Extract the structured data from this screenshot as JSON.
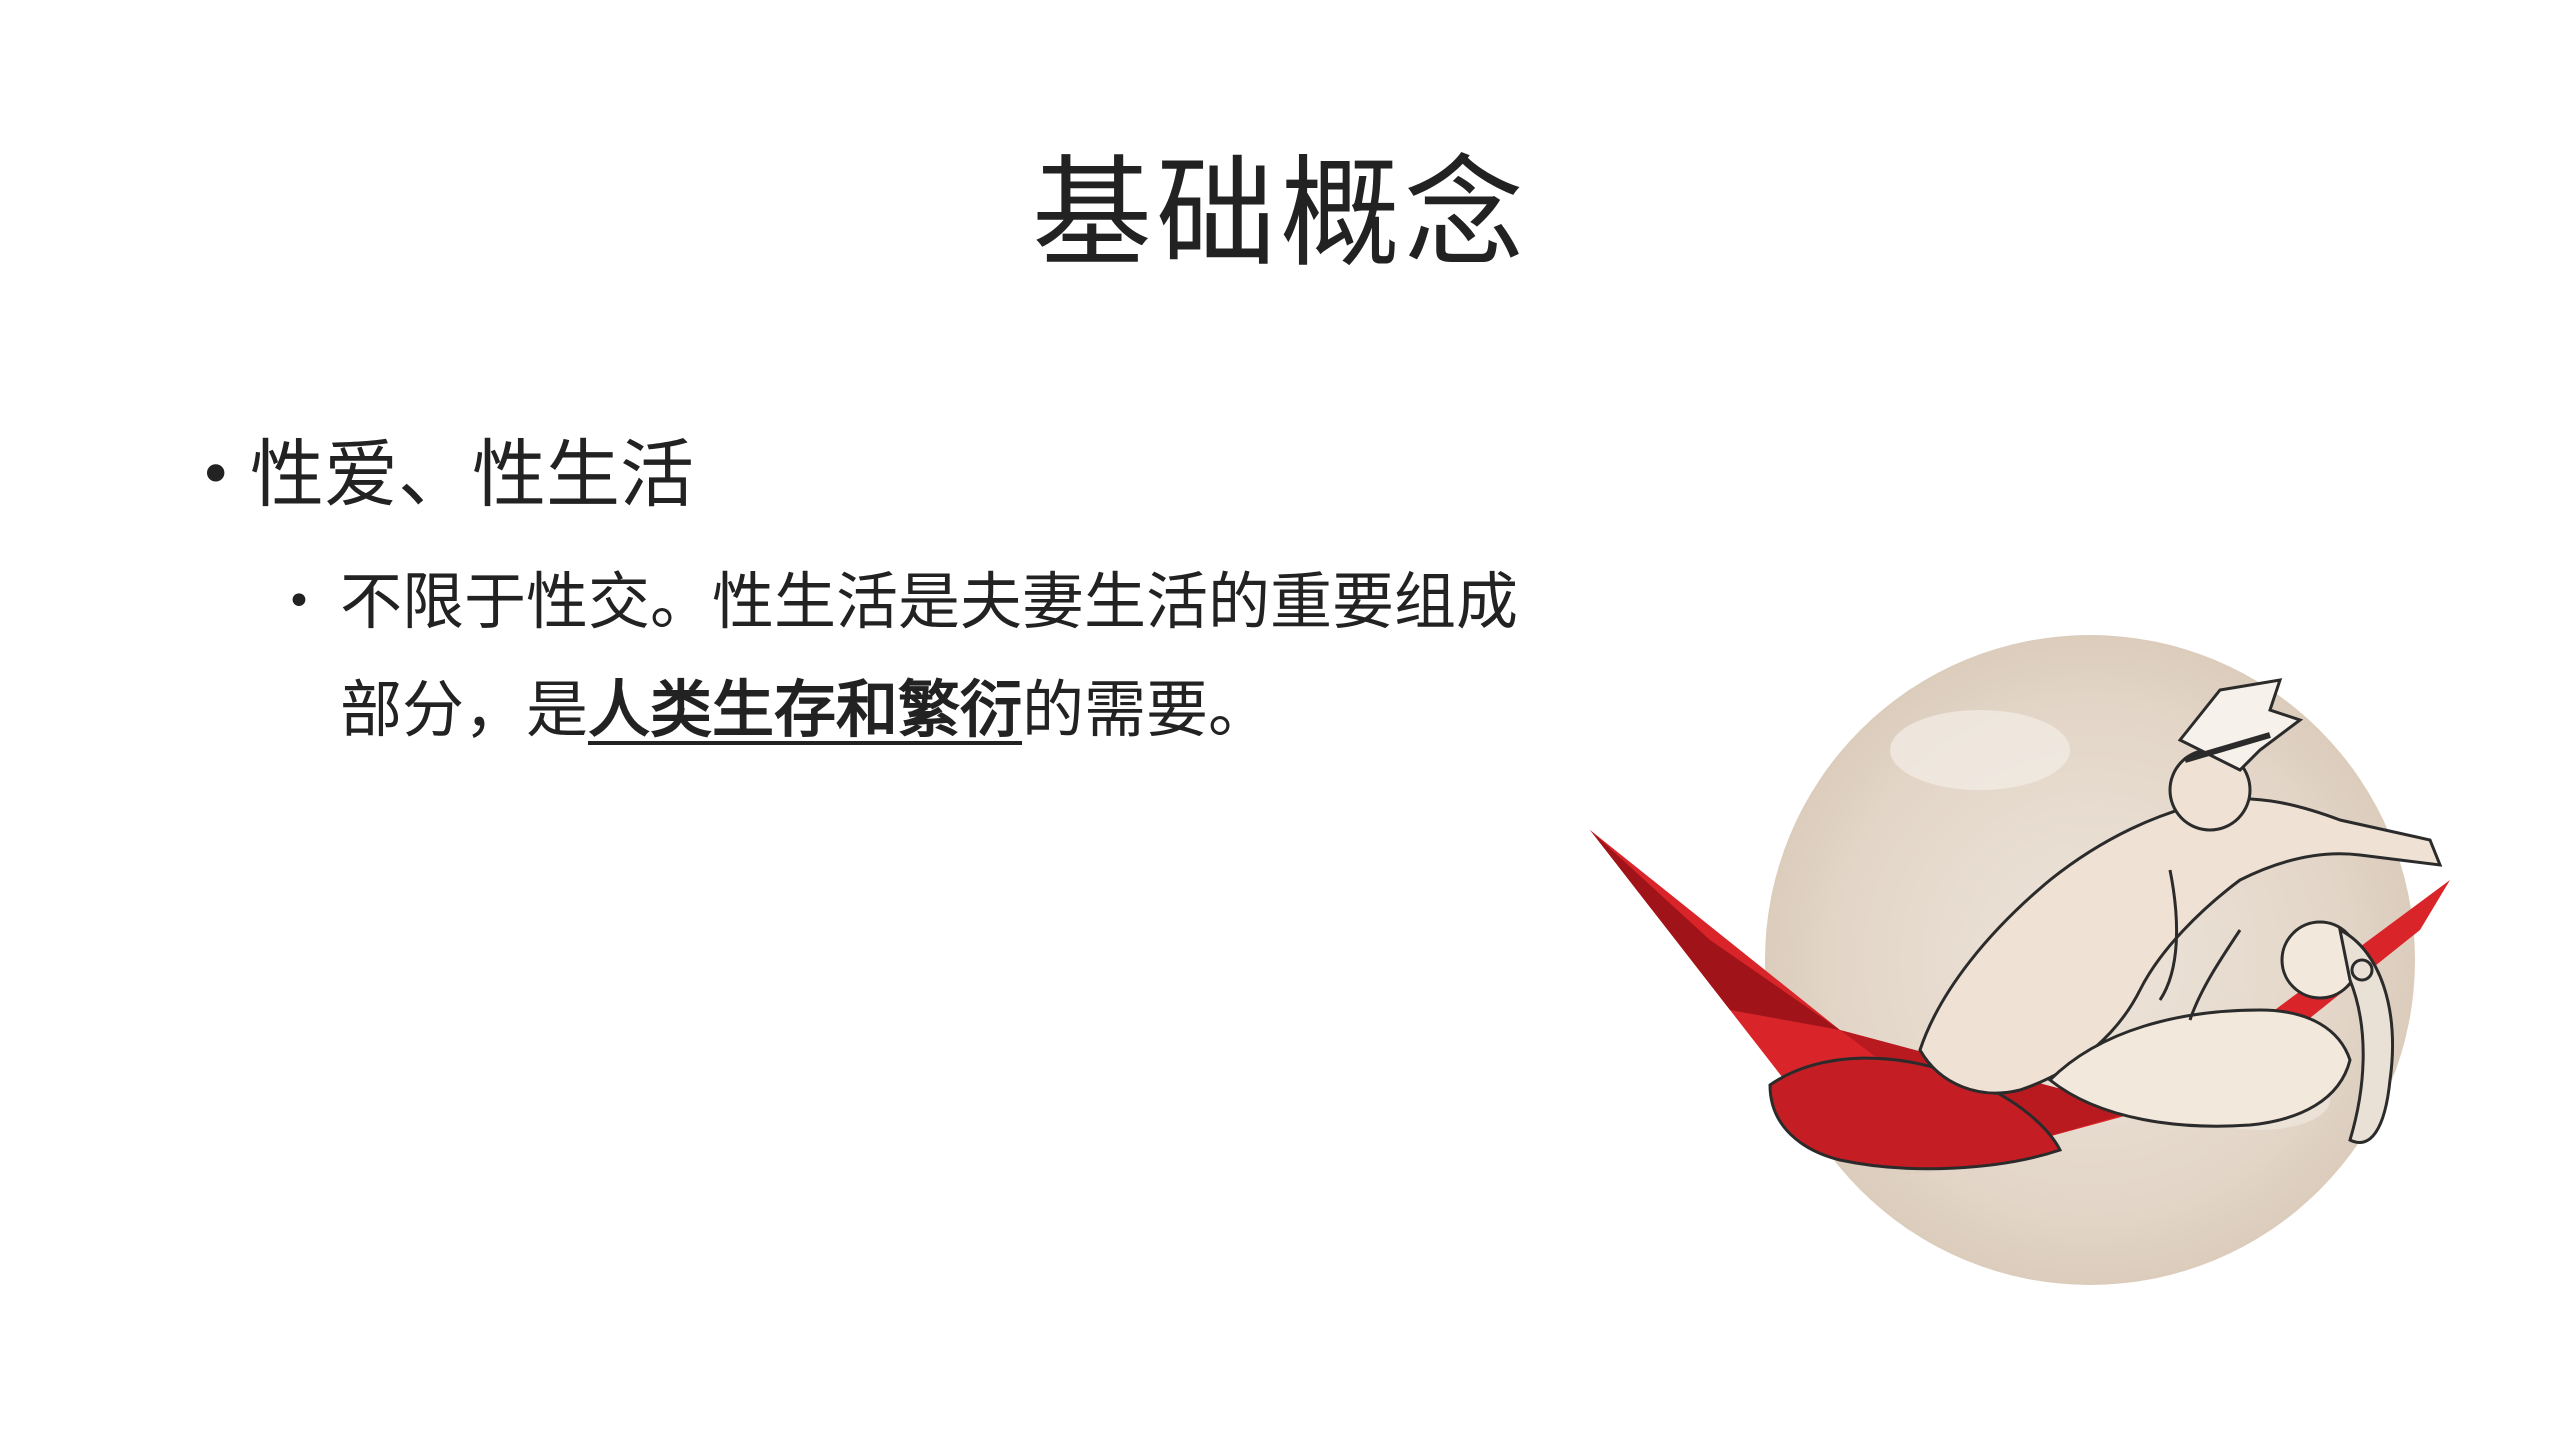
{
  "slide": {
    "title": "基础概念",
    "bullets": [
      {
        "text": "性爱、性生活",
        "sub": {
          "before": "不限于性交。性生活是夫妻生活的重要组成部分，是",
          "emphasis": "人类生存和繁衍",
          "after": "的需要。"
        }
      }
    ],
    "illustration": {
      "description_icon": "couple-in-hammock-illustration",
      "colors": {
        "background_wash": "#e7ddd3",
        "hammock": "#d9252a",
        "hammock_dark": "#a01419",
        "skin": "#efe2d4",
        "outline": "#2b2b2b"
      }
    }
  }
}
